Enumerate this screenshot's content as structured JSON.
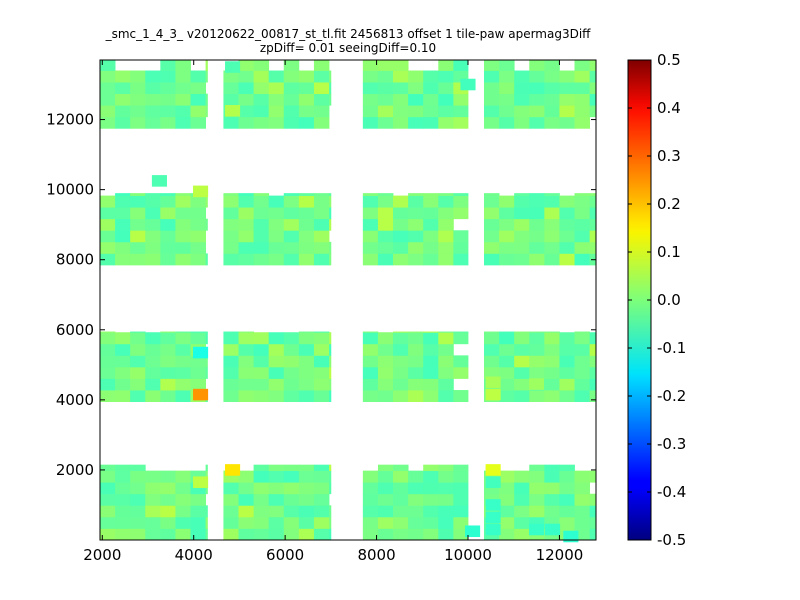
{
  "chart_data": {
    "type": "heatmap",
    "title_line1": "_smc_1_4_3_ v20120622_00817_st_tl.fit 2456813 offset 1 tile-paw apermag3Diff",
    "title_line2": "zpDiff= 0.01 seeingDiff=0.10",
    "xlim": [
      1950,
      12800
    ],
    "ylim": [
      0,
      13700
    ],
    "x_ticks": [
      2000,
      4000,
      6000,
      8000,
      10000,
      12000
    ],
    "y_ticks": [
      2000,
      4000,
      6000,
      8000,
      10000,
      12000
    ],
    "cell_size": 330,
    "colorbar": {
      "vmin": -0.5,
      "vmax": 0.5,
      "ticks": [
        0.5,
        0.4,
        0.3,
        0.2,
        0.1,
        0.0,
        -0.1,
        -0.2,
        -0.3,
        -0.4,
        -0.5
      ],
      "colormap": "jet"
    },
    "panel_columns": [
      {
        "x0": 1950,
        "x1": 4300
      },
      {
        "x0": 4650,
        "x1": 7000
      },
      {
        "x0": 7700,
        "x1": 10000
      },
      {
        "x0": 10350,
        "x1": 12800
      }
    ],
    "panel_rows": [
      {
        "y0": 0,
        "y1": 2150
      },
      {
        "y0": 3950,
        "y1": 5950
      },
      {
        "y0": 7850,
        "y1": 9900
      },
      {
        "y0": 11750,
        "y1": 13700
      }
    ],
    "base_value": -0.02,
    "value_range": [
      -0.1,
      0.2
    ],
    "notable_cells": [
      {
        "x": 4150,
        "y": 4150,
        "value": 0.23
      },
      {
        "x": 4150,
        "y": 5350,
        "value": -0.1
      },
      {
        "x": 4850,
        "y": 2000,
        "value": 0.15
      },
      {
        "x": 4150,
        "y": 9950,
        "value": 0.06
      },
      {
        "x": 4150,
        "y": 1650,
        "value": 0.06
      },
      {
        "x": 4850,
        "y": 12250,
        "value": 0.05
      },
      {
        "x": 10550,
        "y": 4150,
        "value": 0.06
      },
      {
        "x": 10550,
        "y": 4500,
        "value": 0.04
      },
      {
        "x": 10550,
        "y": 2000,
        "value": 0.1
      },
      {
        "x": 10550,
        "y": 1650,
        "value": -0.06
      },
      {
        "x": 10550,
        "y": 1000,
        "value": -0.07
      },
      {
        "x": 10550,
        "y": 650,
        "value": -0.07
      },
      {
        "x": 10550,
        "y": 300,
        "value": -0.07
      },
      {
        "x": 11500,
        "y": 300,
        "value": -0.07
      },
      {
        "x": 11850,
        "y": 300,
        "value": -0.07
      },
      {
        "x": 12250,
        "y": 100,
        "value": -0.08
      },
      {
        "x": 10100,
        "y": 250,
        "value": -0.08
      },
      {
        "x": 3250,
        "y": 10250,
        "value": -0.05
      },
      {
        "x": 10000,
        "y": 13000,
        "value": -0.06
      },
      {
        "x": 11500,
        "y": 4450,
        "value": 0.03
      },
      {
        "x": 4850,
        "y": 13500,
        "value": -0.05
      }
    ]
  }
}
